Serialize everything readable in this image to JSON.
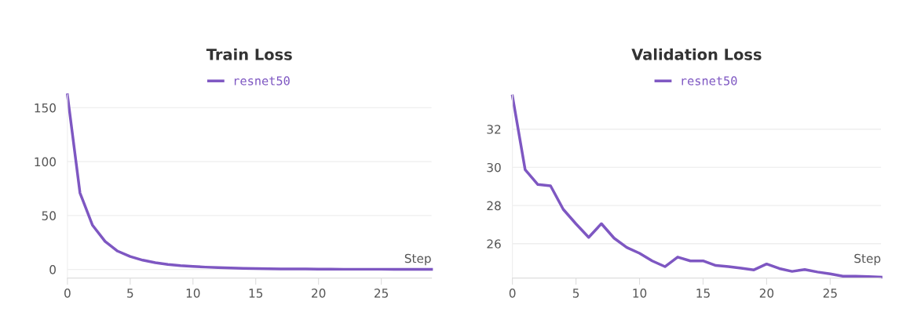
{
  "chart_data": [
    {
      "type": "line",
      "title": "Train Loss",
      "xlabel": "Step",
      "x": [
        0,
        1,
        2,
        3,
        4,
        5,
        6,
        7,
        8,
        9,
        10,
        11,
        12,
        13,
        14,
        15,
        16,
        17,
        18,
        19,
        20,
        21,
        22,
        23,
        24,
        25,
        26,
        27,
        28,
        29
      ],
      "series": [
        {
          "name": "resnet50",
          "color": "#7e57c2",
          "values": [
            162,
            71,
            41,
            26,
            17,
            12,
            8.6,
            6.3,
            4.7,
            3.5,
            2.8,
            2.2,
            1.7,
            1.3,
            1.0,
            0.8,
            0.6,
            0.5,
            0.4,
            0.4,
            0.3,
            0.3,
            0.2,
            0.2,
            0.2,
            0.2,
            0.1,
            0.1,
            0.1,
            0.1
          ]
        }
      ],
      "xlim": [
        0,
        29
      ],
      "xticks": [
        0,
        5,
        10,
        15,
        20,
        25
      ],
      "ylim": [
        -8,
        162
      ],
      "yticks": [
        0,
        50,
        100,
        150
      ],
      "grid": "y",
      "legend": "top",
      "marker": "none",
      "line_style": "solid"
    },
    {
      "type": "line",
      "title": "Validation Loss",
      "xlabel": "Step",
      "x": [
        0,
        1,
        2,
        3,
        4,
        5,
        6,
        7,
        8,
        9,
        10,
        11,
        12,
        13,
        14,
        15,
        16,
        17,
        18,
        19,
        20,
        21,
        22,
        23,
        24,
        25,
        26,
        27,
        28,
        29
      ],
      "series": [
        {
          "name": "resnet50",
          "color": "#7e57c2",
          "values": [
            33.74,
            29.88,
            29.1,
            29.03,
            27.8,
            27.04,
            26.33,
            27.05,
            26.29,
            25.8,
            25.5,
            25.1,
            24.8,
            25.3,
            25.1,
            25.1,
            24.86,
            24.8,
            24.72,
            24.63,
            24.94,
            24.7,
            24.55,
            24.65,
            24.52,
            24.42,
            24.3,
            24.3,
            24.28,
            24.25
          ]
        }
      ],
      "xlim": [
        0,
        29
      ],
      "xticks": [
        0,
        5,
        10,
        15,
        20,
        25
      ],
      "ylim": [
        24.2,
        33.8
      ],
      "yticks": [
        26,
        28,
        30,
        32
      ],
      "grid": "y",
      "legend": "top",
      "marker": "none",
      "line_style": "solid"
    }
  ]
}
